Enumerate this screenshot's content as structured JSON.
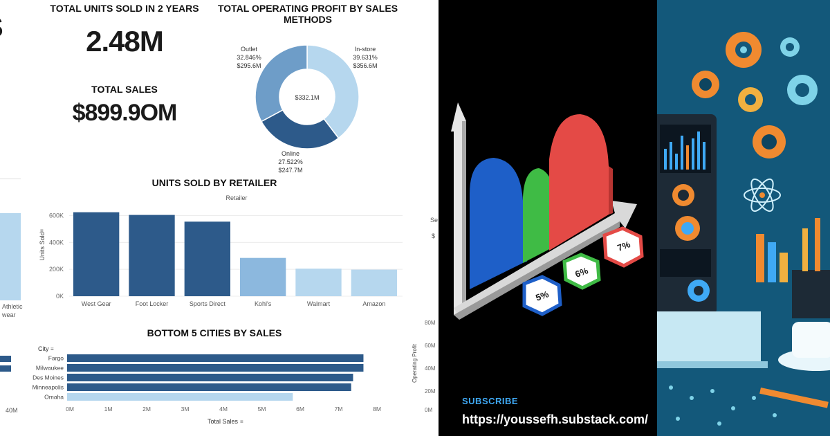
{
  "dashboard": {
    "kpi_units_title": "TOTAL UNITS SOLD IN 2 YEARS",
    "kpi_units_value": "2.48M",
    "kpi_sales_title": "TOTAL SALES",
    "kpi_sales_value": "$899.9OM",
    "left_partial_glyph": "S",
    "left_partial_label_1": "Athletic",
    "left_partial_label_2": "wear",
    "left_partial_tick": "40M",
    "right_partial_1": "Se",
    "right_partial_2": "$",
    "right_partial_axis_label": "Operating Profit",
    "right_partial_ticks": [
      "80M",
      "60M",
      "40M",
      "20M",
      "0M"
    ]
  },
  "chart_data": [
    {
      "type": "pie",
      "title": "TOTAL OPERATING PROFIT BY SALES METHODS",
      "center_label": "$332.1M",
      "slices": [
        {
          "name": "In-store",
          "percent": "39.631%",
          "value": "$356.6M",
          "value_num": 39.631
        },
        {
          "name": "Online",
          "percent": "27.522%",
          "value": "$247.7M",
          "value_num": 27.522
        },
        {
          "name": "Outlet",
          "percent": "32.846%",
          "value": "$295.6M",
          "value_num": 32.846
        }
      ],
      "colors": [
        "#b6d7ee",
        "#2d5a8a",
        "#6e9dc8"
      ]
    },
    {
      "type": "bar",
      "title": "UNITS SOLD BY RETAILER",
      "header": "Retailer",
      "ylabel": "Units Sold",
      "categories": [
        "West Gear",
        "Foot Locker",
        "Sports Direct",
        "Kohl's",
        "Walmart",
        "Amazon"
      ],
      "values": [
        625000,
        605000,
        555000,
        285000,
        205000,
        198000
      ],
      "yticks": [
        "0K",
        "200K",
        "400K",
        "600K"
      ],
      "ylim": [
        0,
        680000
      ],
      "colors": [
        "#2d5a8a",
        "#2d5a8a",
        "#2d5a8a",
        "#8cb8de",
        "#b6d7ee",
        "#b6d7ee"
      ]
    },
    {
      "type": "bar",
      "orientation": "horizontal",
      "title": "BOTTOM 5 CITIES BY SALES",
      "ylabel": "City",
      "xlabel": "Total Sales",
      "categories": [
        "Fargo",
        "Milwaukee",
        "Des Moines",
        "Minneapolis",
        "Omaha"
      ],
      "values": [
        7.72,
        7.72,
        7.45,
        7.4,
        5.88
      ],
      "xticks": [
        "0M",
        "1M",
        "2M",
        "3M",
        "4M",
        "5M",
        "6M",
        "7M",
        "8M"
      ],
      "xlim": [
        0,
        8
      ],
      "colors": [
        "#2d5a8a",
        "#2d5a8a",
        "#2d5a8a",
        "#2d5a8a",
        "#b6d7ee"
      ]
    }
  ],
  "promo": {
    "subscribe_label": "SUBSCRIBE",
    "url": "https://youssefh.substack.com/",
    "tags": [
      "5%",
      "6%",
      "7%"
    ]
  }
}
